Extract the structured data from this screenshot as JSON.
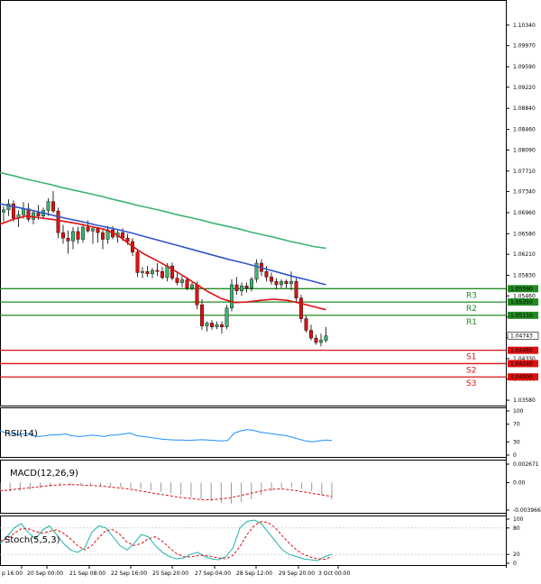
{
  "chart_data": {
    "type": "candlestick",
    "price_axis_ticks": [
      "1.10340",
      "1.09970",
      "1.09590",
      "1.09220",
      "1.08840",
      "1.08460",
      "1.08090",
      "1.07710",
      "1.07340",
      "1.06960",
      "1.06580",
      "1.06210",
      "1.05830",
      "1.05460",
      "1.05080",
      "1.04710",
      "1.04330",
      "1.03960",
      "1.03580"
    ],
    "ylim": [
      1.035,
      1.105
    ],
    "current_price": "1.04743",
    "x_labels": [
      "p 16:00",
      "20 Sep 00:00",
      "21 Sep 08:00",
      "22 Sep 16:00",
      "25 Sep 20:00",
      "27 Sep 04:00",
      "28 Sep 12:00",
      "29 Sep 20:00",
      "3 Oct 00:00"
    ],
    "candles": [
      {
        "o": 1.0697,
        "h": 1.0708,
        "l": 1.068,
        "c": 1.0701
      },
      {
        "o": 1.0701,
        "h": 1.072,
        "l": 1.069,
        "c": 1.0712
      },
      {
        "o": 1.0712,
        "h": 1.0718,
        "l": 1.068,
        "c": 1.0686
      },
      {
        "o": 1.0686,
        "h": 1.07,
        "l": 1.067,
        "c": 1.0692
      },
      {
        "o": 1.0692,
        "h": 1.0715,
        "l": 1.0685,
        "c": 1.0703
      },
      {
        "o": 1.0703,
        "h": 1.0713,
        "l": 1.068,
        "c": 1.0684
      },
      {
        "o": 1.0684,
        "h": 1.07,
        "l": 1.0675,
        "c": 1.0696
      },
      {
        "o": 1.0696,
        "h": 1.071,
        "l": 1.0683,
        "c": 1.069
      },
      {
        "o": 1.069,
        "h": 1.0705,
        "l": 1.0684,
        "c": 1.07
      },
      {
        "o": 1.07,
        "h": 1.0722,
        "l": 1.069,
        "c": 1.0716
      },
      {
        "o": 1.0716,
        "h": 1.0735,
        "l": 1.0696,
        "c": 1.0699
      },
      {
        "o": 1.0699,
        "h": 1.0705,
        "l": 1.065,
        "c": 1.066
      },
      {
        "o": 1.066,
        "h": 1.0674,
        "l": 1.064,
        "c": 1.065
      },
      {
        "o": 1.065,
        "h": 1.0664,
        "l": 1.0622,
        "c": 1.0645
      },
      {
        "o": 1.0645,
        "h": 1.067,
        "l": 1.063,
        "c": 1.0662
      },
      {
        "o": 1.0662,
        "h": 1.067,
        "l": 1.064,
        "c": 1.0648
      },
      {
        "o": 1.0648,
        "h": 1.0676,
        "l": 1.0642,
        "c": 1.067
      },
      {
        "o": 1.067,
        "h": 1.0682,
        "l": 1.066,
        "c": 1.0663
      },
      {
        "o": 1.0663,
        "h": 1.0672,
        "l": 1.064,
        "c": 1.0667
      },
      {
        "o": 1.0667,
        "h": 1.067,
        "l": 1.0642,
        "c": 1.066
      },
      {
        "o": 1.066,
        "h": 1.0666,
        "l": 1.063,
        "c": 1.0648
      },
      {
        "o": 1.0648,
        "h": 1.0672,
        "l": 1.064,
        "c": 1.0665
      },
      {
        "o": 1.0665,
        "h": 1.0672,
        "l": 1.0648,
        "c": 1.0652
      },
      {
        "o": 1.0652,
        "h": 1.0664,
        "l": 1.0642,
        "c": 1.066
      },
      {
        "o": 1.066,
        "h": 1.0668,
        "l": 1.0645,
        "c": 1.065
      },
      {
        "o": 1.065,
        "h": 1.0658,
        "l": 1.0638,
        "c": 1.0644
      },
      {
        "o": 1.0644,
        "h": 1.065,
        "l": 1.0618,
        "c": 1.0625
      },
      {
        "o": 1.0625,
        "h": 1.063,
        "l": 1.058,
        "c": 1.0588
      },
      {
        "o": 1.0588,
        "h": 1.0598,
        "l": 1.0578,
        "c": 1.059
      },
      {
        "o": 1.059,
        "h": 1.06,
        "l": 1.058,
        "c": 1.0586
      },
      {
        "o": 1.0586,
        "h": 1.0596,
        "l": 1.0578,
        "c": 1.0592
      },
      {
        "o": 1.0592,
        "h": 1.0605,
        "l": 1.0582,
        "c": 1.059
      },
      {
        "o": 1.059,
        "h": 1.0598,
        "l": 1.0576,
        "c": 1.0579
      },
      {
        "o": 1.0579,
        "h": 1.0605,
        "l": 1.0572,
        "c": 1.06
      },
      {
        "o": 1.06,
        "h": 1.0606,
        "l": 1.0574,
        "c": 1.0578
      },
      {
        "o": 1.0578,
        "h": 1.059,
        "l": 1.0565,
        "c": 1.057
      },
      {
        "o": 1.057,
        "h": 1.0582,
        "l": 1.0562,
        "c": 1.0575
      },
      {
        "o": 1.0575,
        "h": 1.058,
        "l": 1.0556,
        "c": 1.056
      },
      {
        "o": 1.056,
        "h": 1.057,
        "l": 1.0556,
        "c": 1.0566
      },
      {
        "o": 1.0566,
        "h": 1.0572,
        "l": 1.0522,
        "c": 1.053
      },
      {
        "o": 1.053,
        "h": 1.054,
        "l": 1.0485,
        "c": 1.0492
      },
      {
        "o": 1.0492,
        "h": 1.05,
        "l": 1.0482,
        "c": 1.0497
      },
      {
        "o": 1.0497,
        "h": 1.0502,
        "l": 1.0485,
        "c": 1.049
      },
      {
        "o": 1.049,
        "h": 1.05,
        "l": 1.0486,
        "c": 1.0494
      },
      {
        "o": 1.0494,
        "h": 1.05,
        "l": 1.0478,
        "c": 1.049
      },
      {
        "o": 1.049,
        "h": 1.053,
        "l": 1.0486,
        "c": 1.0524
      },
      {
        "o": 1.0524,
        "h": 1.0576,
        "l": 1.0518,
        "c": 1.0566
      },
      {
        "o": 1.0566,
        "h": 1.058,
        "l": 1.0548,
        "c": 1.0555
      },
      {
        "o": 1.0555,
        "h": 1.057,
        "l": 1.0546,
        "c": 1.0564
      },
      {
        "o": 1.0564,
        "h": 1.057,
        "l": 1.0552,
        "c": 1.056
      },
      {
        "o": 1.056,
        "h": 1.058,
        "l": 1.0554,
        "c": 1.0576
      },
      {
        "o": 1.0576,
        "h": 1.0612,
        "l": 1.057,
        "c": 1.0605
      },
      {
        "o": 1.0605,
        "h": 1.0612,
        "l": 1.0582,
        "c": 1.059
      },
      {
        "o": 1.059,
        "h": 1.06,
        "l": 1.0572,
        "c": 1.058
      },
      {
        "o": 1.058,
        "h": 1.0588,
        "l": 1.0566,
        "c": 1.0572
      },
      {
        "o": 1.0572,
        "h": 1.0578,
        "l": 1.0558,
        "c": 1.0566
      },
      {
        "o": 1.0566,
        "h": 1.0576,
        "l": 1.056,
        "c": 1.0572
      },
      {
        "o": 1.0572,
        "h": 1.0576,
        "l": 1.056,
        "c": 1.0568
      },
      {
        "o": 1.0568,
        "h": 1.059,
        "l": 1.0556,
        "c": 1.0572
      },
      {
        "o": 1.0572,
        "h": 1.0578,
        "l": 1.0536,
        "c": 1.0542
      },
      {
        "o": 1.0542,
        "h": 1.0548,
        "l": 1.0498,
        "c": 1.0505
      },
      {
        "o": 1.0505,
        "h": 1.051,
        "l": 1.048,
        "c": 1.0484
      },
      {
        "o": 1.0484,
        "h": 1.0494,
        "l": 1.0466,
        "c": 1.047
      },
      {
        "o": 1.047,
        "h": 1.0476,
        "l": 1.0458,
        "c": 1.0462
      },
      {
        "o": 1.0462,
        "h": 1.0478,
        "l": 1.0455,
        "c": 1.0466
      },
      {
        "o": 1.0466,
        "h": 1.049,
        "l": 1.0462,
        "c": 1.0474
      }
    ],
    "moving_averages": [
      {
        "color": "#3cb371",
        "values": [
          1.0768,
          1.0763,
          1.0757,
          1.0752,
          1.0747,
          1.0741,
          1.0736,
          1.0731,
          1.0726,
          1.072,
          1.0715,
          1.0709,
          1.0704,
          1.0699,
          1.0693,
          1.0688,
          1.0683,
          1.0677,
          1.0672,
          1.0667,
          1.0661,
          1.0656,
          1.0651,
          1.0645,
          1.064,
          1.0635,
          1.0632
        ]
      },
      {
        "color": "#3355cc",
        "values": [
          1.0712,
          1.0706,
          1.07,
          1.0693,
          1.0686,
          1.068,
          1.0673,
          1.0667,
          1.066,
          1.0652,
          1.0644,
          1.0636,
          1.0628,
          1.062,
          1.0612,
          1.0605,
          1.0597,
          1.0589,
          1.0581,
          1.0574,
          1.0566
        ]
      },
      {
        "color": "#dd1111",
        "values": [
          1.0675,
          1.0684,
          1.069,
          1.0687,
          1.0684,
          1.068,
          1.0676,
          1.0671,
          1.0666,
          1.0656,
          1.0638,
          1.0622,
          1.061,
          1.0597,
          1.0583,
          1.0568,
          1.0553,
          1.0541,
          1.0534,
          1.0535,
          1.0538,
          1.054,
          1.0538,
          1.0533,
          1.0527,
          1.0521
        ]
      }
    ],
    "levels": [
      {
        "label": "R3",
        "value": 1.0559,
        "text": "1.05590",
        "color": "#228b22"
      },
      {
        "label": "R2",
        "value": 1.0535,
        "text": "1.05350",
        "color": "#228b22"
      },
      {
        "label": "R1",
        "value": 1.0511,
        "text": "1.05110",
        "color": "#228b22"
      },
      {
        "label": "S1",
        "value": 1.0448,
        "text": "1.04480",
        "color": "#dd1111"
      },
      {
        "label": "S2",
        "value": 1.0424,
        "text": "1.04240",
        "color": "#dd1111"
      },
      {
        "label": "S3",
        "value": 1.04,
        "text": "1.04000",
        "color": "#dd1111"
      }
    ],
    "rsi": {
      "title": "RSI(14)",
      "ticks": [
        "100",
        "70",
        "30",
        "0"
      ],
      "ylim": [
        0,
        100
      ],
      "values": [
        55,
        50,
        48,
        46,
        50,
        44,
        42,
        44,
        46,
        46,
        48,
        44,
        42,
        43,
        45,
        44,
        42,
        45,
        46,
        48,
        50,
        44,
        42,
        40,
        38,
        36,
        35,
        34,
        34,
        33,
        34,
        35,
        34,
        33,
        32,
        33,
        50,
        55,
        58,
        56,
        52,
        50,
        48,
        46,
        44,
        40,
        36,
        32,
        30,
        32,
        34,
        33
      ]
    },
    "macd": {
      "title": "MACD(12,26,9)",
      "ticks": [
        "0.002671",
        "0.00",
        "-0.003966"
      ],
      "ylim": [
        -0.003966,
        0.002671
      ],
      "histogram": [
        -0.0014,
        -0.0013,
        -0.0012,
        -0.001,
        -0.0008,
        -0.0006,
        -0.0005,
        -0.0004,
        -0.0004,
        -0.0005,
        -0.0005,
        -0.0006,
        -0.0007,
        -0.0008,
        -0.0009,
        -0.0011,
        -0.0013,
        -0.0015,
        -0.0018,
        -0.0021,
        -0.0024,
        -0.0027,
        -0.0029,
        -0.003,
        -0.0028,
        -0.0024,
        -0.0018,
        -0.0012,
        -0.0008,
        -0.0007,
        -0.0009,
        -0.0012,
        -0.0018,
        -0.0024
      ],
      "signal": [
        -0.0012,
        -0.001,
        -0.0008,
        -0.0006,
        -0.0004,
        -0.0003,
        -0.0003,
        -0.0004,
        -0.0005,
        -0.0007,
        -0.0009,
        -0.0012,
        -0.0015,
        -0.0018,
        -0.0021,
        -0.0023,
        -0.0025,
        -0.0024,
        -0.0022,
        -0.0018,
        -0.0014,
        -0.001,
        -0.0009,
        -0.0011,
        -0.0014,
        -0.0017,
        -0.002
      ]
    },
    "stoch": {
      "title": "Stoch(5,5,3)",
      "ticks": [
        "100",
        "80",
        "20",
        "0"
      ],
      "ylim": [
        0,
        100
      ],
      "k": [
        45,
        60,
        80,
        90,
        70,
        55,
        75,
        85,
        65,
        45,
        30,
        25,
        35,
        70,
        85,
        80,
        60,
        40,
        30,
        45,
        65,
        60,
        40,
        25,
        15,
        10,
        12,
        20,
        25,
        15,
        10,
        8,
        15,
        35,
        80,
        95,
        98,
        90,
        70,
        50,
        30,
        20,
        15,
        10,
        8,
        6,
        15,
        20
      ],
      "d": [
        50,
        55,
        68,
        78,
        78,
        72,
        68,
        72,
        76,
        68,
        55,
        40,
        30,
        40,
        58,
        74,
        76,
        65,
        48,
        40,
        45,
        55,
        60,
        50,
        35,
        22,
        15,
        14,
        18,
        18,
        15,
        12,
        10,
        18,
        38,
        65,
        85,
        95,
        92,
        80,
        62,
        45,
        30,
        20,
        14,
        10,
        9,
        15
      ]
    }
  }
}
